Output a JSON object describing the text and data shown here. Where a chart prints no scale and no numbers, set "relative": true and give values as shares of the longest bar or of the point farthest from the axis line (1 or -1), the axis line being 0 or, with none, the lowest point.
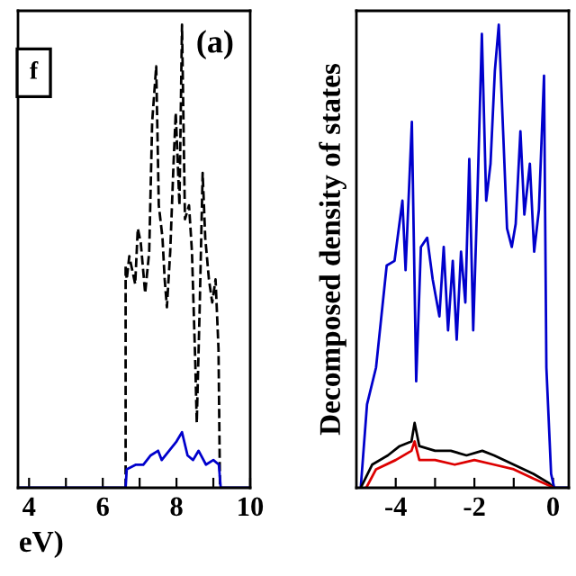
{
  "chart_data": [
    {
      "type": "line",
      "relative": true,
      "xlabel": "eV)",
      "xlim": [
        3.7,
        10
      ],
      "xticks": [
        4,
        {
          "value": 5,
          "label": null
        },
        6,
        {
          "value": 7,
          "label": null
        },
        8,
        {
          "value": 9,
          "label": null
        },
        10
      ],
      "tick_labels": "x",
      "grid": false,
      "legend": false,
      "annotations": [
        "(a)",
        "f"
      ],
      "series": [
        {
          "color": "#000000",
          "line_style": "dashed",
          "x": [
            6.62,
            6.62,
            6.65,
            6.72,
            6.88,
            6.95,
            7.03,
            7.15,
            7.26,
            7.34,
            7.45,
            7.52,
            7.62,
            7.68,
            7.74,
            7.83,
            7.92,
            7.98,
            8.08,
            8.15,
            8.23,
            8.34,
            8.42,
            8.51,
            8.55,
            8.63,
            8.71,
            8.78,
            8.88,
            8.97,
            9.06,
            9.14,
            9.18
          ],
          "values": [
            0,
            0.48,
            0.45,
            0.5,
            0.44,
            0.56,
            0.53,
            0.42,
            0.51,
            0.79,
            0.91,
            0.61,
            0.54,
            0.45,
            0.39,
            0.51,
            0.7,
            0.81,
            0.61,
            1.0,
            0.58,
            0.61,
            0.51,
            0.27,
            0.14,
            0.39,
            0.68,
            0.54,
            0.45,
            0.4,
            0.45,
            0.3,
            0
          ]
        },
        {
          "color": "#0000cc",
          "line_style": "solid",
          "x": [
            3.7,
            6.62,
            6.65,
            6.9,
            7.1,
            7.3,
            7.5,
            7.6,
            7.8,
            8.0,
            8.15,
            8.3,
            8.45,
            8.6,
            8.8,
            9.0,
            9.15,
            9.2,
            10
          ],
          "values": [
            0,
            0,
            0.04,
            0.05,
            0.05,
            0.07,
            0.08,
            0.06,
            0.08,
            0.1,
            0.12,
            0.07,
            0.06,
            0.08,
            0.05,
            0.06,
            0.05,
            0,
            0
          ]
        }
      ]
    },
    {
      "type": "line",
      "relative": true,
      "ylabel": "Decomposed density of states",
      "xlim": [
        -5,
        0.4
      ],
      "xticks": [
        -4,
        {
          "value": -3,
          "label": null
        },
        -2,
        {
          "value": -1,
          "label": null
        },
        0
      ],
      "tick_labels": "x",
      "grid": false,
      "legend": false,
      "series": [
        {
          "color": "#0000cc",
          "line_style": "solid",
          "x": [
            -4.89,
            -4.73,
            -4.5,
            -4.23,
            -4.03,
            -3.83,
            -3.75,
            -3.59,
            -3.48,
            -3.36,
            -3.2,
            -3.06,
            -2.89,
            -2.78,
            -2.67,
            -2.55,
            -2.45,
            -2.34,
            -2.23,
            -2.13,
            -2.03,
            -1.92,
            -1.81,
            -1.7,
            -1.59,
            -1.48,
            -1.38,
            -1.27,
            -1.17,
            -1.05,
            -0.95,
            -0.83,
            -0.73,
            -0.59,
            -0.48,
            -0.36,
            -0.23,
            -0.17,
            -0.05,
            0.03,
            0.4
          ],
          "values": [
            0,
            0.18,
            0.26,
            0.48,
            0.49,
            0.62,
            0.47,
            0.79,
            0.23,
            0.52,
            0.54,
            0.45,
            0.37,
            0.52,
            0.34,
            0.49,
            0.32,
            0.51,
            0.4,
            0.71,
            0.34,
            0.64,
            0.98,
            0.62,
            0.7,
            0.9,
            1.0,
            0.77,
            0.56,
            0.52,
            0.57,
            0.77,
            0.59,
            0.7,
            0.51,
            0.6,
            0.89,
            0.26,
            0.03,
            0,
            0
          ]
        },
        {
          "color": "#000000",
          "line_style": "solid",
          "x": [
            -4.89,
            -4.6,
            -4.2,
            -3.9,
            -3.6,
            -3.52,
            -3.4,
            -3.0,
            -2.6,
            -2.2,
            -1.8,
            -1.5,
            -1.0,
            -0.5,
            -0.1,
            0.0
          ],
          "values": [
            0,
            0.05,
            0.07,
            0.09,
            0.1,
            0.14,
            0.09,
            0.08,
            0.08,
            0.07,
            0.08,
            0.07,
            0.05,
            0.03,
            0.01,
            0
          ]
        },
        {
          "color": "#dd0000",
          "line_style": "solid",
          "x": [
            -4.75,
            -4.5,
            -4.0,
            -3.6,
            -3.52,
            -3.4,
            -3.0,
            -2.5,
            -2.0,
            -1.5,
            -1.0,
            -0.5,
            -0.1,
            0.0
          ],
          "values": [
            0,
            0.04,
            0.06,
            0.08,
            0.1,
            0.06,
            0.06,
            0.05,
            0.06,
            0.05,
            0.04,
            0.02,
            0.005,
            0
          ]
        }
      ]
    }
  ]
}
